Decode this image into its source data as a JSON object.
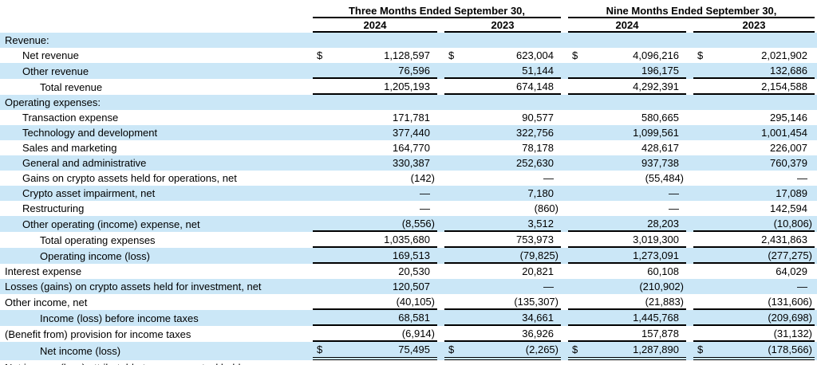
{
  "colors": {
    "stripe": "#cbe7f7",
    "line": "#000000",
    "text": "#000000",
    "background": "#ffffff"
  },
  "header": {
    "groups": [
      {
        "label": "Three Months Ended September 30,"
      },
      {
        "label": "Nine Months Ended September 30,"
      }
    ],
    "years": [
      "2024",
      "2023",
      "2024",
      "2023"
    ]
  },
  "table": {
    "currency": "$",
    "rows": [
      {
        "label": "Revenue:",
        "indent": 0,
        "shaded": true,
        "dollar": false,
        "underline": "none",
        "values": [
          "",
          "",
          "",
          ""
        ]
      },
      {
        "label": "Net revenue",
        "indent": 1,
        "shaded": false,
        "dollar": true,
        "underline": "none",
        "values": [
          "1,128,597",
          "623,004",
          "4,096,216",
          "2,021,902"
        ]
      },
      {
        "label": "Other revenue",
        "indent": 1,
        "shaded": true,
        "dollar": false,
        "underline": "single",
        "values": [
          "76,596",
          "51,144",
          "196,175",
          "132,686"
        ]
      },
      {
        "label": "Total revenue",
        "indent": 2,
        "shaded": false,
        "dollar": false,
        "underline": "single",
        "values": [
          "1,205,193",
          "674,148",
          "4,292,391",
          "2,154,588"
        ]
      },
      {
        "label": "Operating expenses:",
        "indent": 0,
        "shaded": true,
        "dollar": false,
        "underline": "none",
        "values": [
          "",
          "",
          "",
          ""
        ]
      },
      {
        "label": "Transaction expense",
        "indent": 1,
        "shaded": false,
        "dollar": false,
        "underline": "none",
        "values": [
          "171,781",
          "90,577",
          "580,665",
          "295,146"
        ]
      },
      {
        "label": "Technology and development",
        "indent": 1,
        "shaded": true,
        "dollar": false,
        "underline": "none",
        "values": [
          "377,440",
          "322,756",
          "1,099,561",
          "1,001,454"
        ]
      },
      {
        "label": "Sales and marketing",
        "indent": 1,
        "shaded": false,
        "dollar": false,
        "underline": "none",
        "values": [
          "164,770",
          "78,178",
          "428,617",
          "226,007"
        ]
      },
      {
        "label": "General and administrative",
        "indent": 1,
        "shaded": true,
        "dollar": false,
        "underline": "none",
        "values": [
          "330,387",
          "252,630",
          "937,738",
          "760,379"
        ]
      },
      {
        "label": "Gains on crypto assets held for operations, net",
        "indent": 1,
        "shaded": false,
        "dollar": false,
        "underline": "none",
        "values": [
          "(142)",
          "—",
          "(55,484)",
          "—"
        ]
      },
      {
        "label": "Crypto asset impairment, net",
        "indent": 1,
        "shaded": true,
        "dollar": false,
        "underline": "none",
        "values": [
          "—",
          "7,180",
          "—",
          "17,089"
        ]
      },
      {
        "label": "Restructuring",
        "indent": 1,
        "shaded": false,
        "dollar": false,
        "underline": "none",
        "values": [
          "—",
          "(860)",
          "—",
          "142,594"
        ]
      },
      {
        "label": "Other operating (income) expense, net",
        "indent": 1,
        "shaded": true,
        "dollar": false,
        "underline": "single",
        "values": [
          "(8,556)",
          "3,512",
          "28,203",
          "(10,806)"
        ]
      },
      {
        "label": "Total operating expenses",
        "indent": 2,
        "shaded": false,
        "dollar": false,
        "underline": "single",
        "values": [
          "1,035,680",
          "753,973",
          "3,019,300",
          "2,431,863"
        ]
      },
      {
        "label": "Operating income (loss)",
        "indent": 2,
        "shaded": true,
        "dollar": false,
        "underline": "single",
        "values": [
          "169,513",
          "(79,825)",
          "1,273,091",
          "(277,275)"
        ]
      },
      {
        "label": "Interest expense",
        "indent": 0,
        "shaded": false,
        "dollar": false,
        "underline": "none",
        "values": [
          "20,530",
          "20,821",
          "60,108",
          "64,029"
        ]
      },
      {
        "label": "Losses (gains) on crypto assets held for investment, net",
        "indent": 0,
        "shaded": true,
        "dollar": false,
        "underline": "none",
        "values": [
          "120,507",
          "—",
          "(210,902)",
          "—"
        ]
      },
      {
        "label": "Other income, net",
        "indent": 0,
        "shaded": false,
        "dollar": false,
        "underline": "single",
        "values": [
          "(40,105)",
          "(135,307)",
          "(21,883)",
          "(131,606)"
        ]
      },
      {
        "label": "Income (loss) before income taxes",
        "indent": 2,
        "shaded": true,
        "dollar": false,
        "underline": "single",
        "values": [
          "68,581",
          "34,661",
          "1,445,768",
          "(209,698)"
        ]
      },
      {
        "label": "(Benefit from) provision for income taxes",
        "indent": 0,
        "shaded": false,
        "dollar": false,
        "underline": "single",
        "values": [
          "(6,914)",
          "36,926",
          "157,878",
          "(31,132)"
        ]
      },
      {
        "label": "Net income (loss)",
        "indent": 2,
        "shaded": true,
        "dollar": true,
        "underline": "double",
        "values": [
          "75,495",
          "(2,265)",
          "1,287,890",
          "(178,566)"
        ]
      },
      {
        "label": "Net income (loss) attributable to common stockholders",
        "indent": 0,
        "shaded": false,
        "dollar": false,
        "underline": "none",
        "values": [
          "",
          "",
          "",
          ""
        ]
      }
    ]
  }
}
